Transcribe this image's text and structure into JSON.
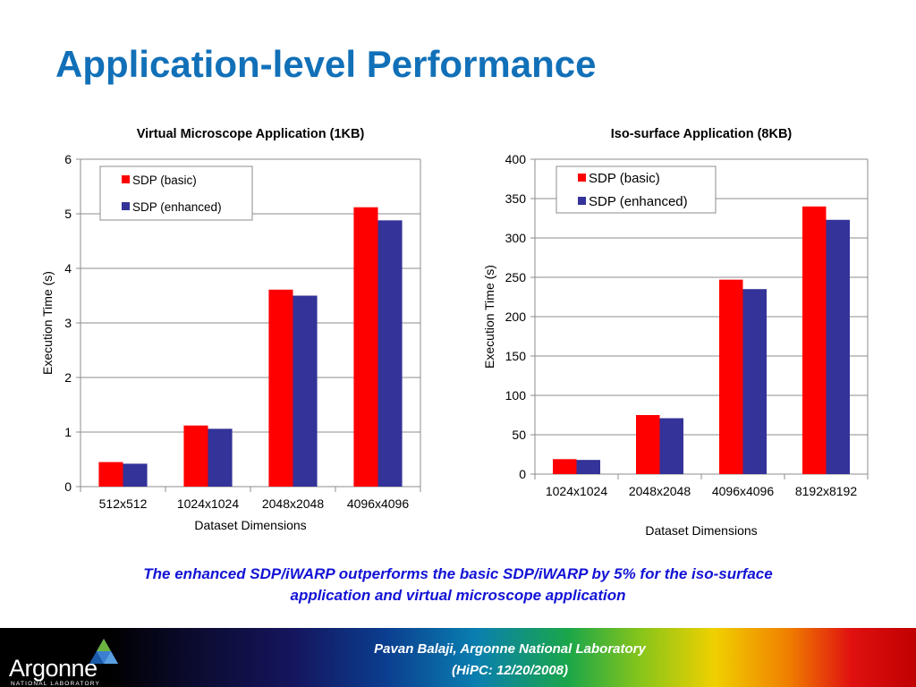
{
  "slide": {
    "title": "Application-level Performance",
    "caption": [
      "The enhanced SDP/iWARP outperforms the basic SDP/iWARP by 5% for the iso-surface",
      "application and virtual microscope application"
    ],
    "footer": {
      "line1": "Pavan Balaji, Argonne National Laboratory",
      "line2": "(HiPC: 12/20/2008)"
    },
    "logo": {
      "name": "Argonne",
      "subtitle": "NATIONAL LABORATORY"
    }
  },
  "colors": {
    "title": "#1170B8",
    "caption": "#1212D6",
    "series_basic": "#FF0000",
    "series_enhanced": "#333399"
  },
  "chart_data": [
    {
      "type": "bar",
      "title": "Virtual Microscope Application (1KB)",
      "xlabel": "Dataset Dimensions",
      "ylabel": "Execution Time (s)",
      "categories": [
        "512x512",
        "1024x1024",
        "2048x2048",
        "4096x4096"
      ],
      "series": [
        {
          "name": "SDP (basic)",
          "values": [
            0.45,
            1.12,
            3.61,
            5.12
          ]
        },
        {
          "name": "SDP (enhanced)",
          "values": [
            0.42,
            1.06,
            3.5,
            4.88
          ]
        }
      ],
      "ylim": [
        0,
        6
      ],
      "yticks": [
        0,
        1,
        2,
        3,
        4,
        5,
        6
      ],
      "grid": true,
      "legend": "top-left"
    },
    {
      "type": "bar",
      "title": "Iso-surface Application (8KB)",
      "xlabel": "Dataset Dimensions",
      "ylabel": "Execution Time (s)",
      "categories": [
        "1024x1024",
        "2048x2048",
        "4096x4096",
        "8192x8192"
      ],
      "series": [
        {
          "name": "SDP (basic)",
          "values": [
            19,
            75,
            247,
            340
          ]
        },
        {
          "name": "SDP (enhanced)",
          "values": [
            18,
            71,
            235,
            323
          ]
        }
      ],
      "ylim": [
        0,
        400
      ],
      "yticks": [
        0,
        50,
        100,
        150,
        200,
        250,
        300,
        350,
        400
      ],
      "grid": true,
      "legend": "top-left"
    }
  ]
}
